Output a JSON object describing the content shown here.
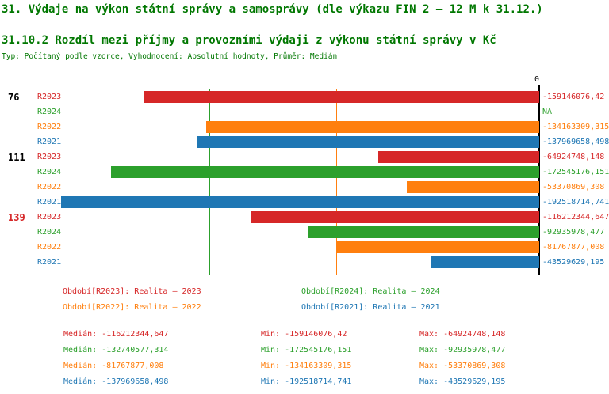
{
  "title": "31. Výdaje na výkon státní správy a samosprávy (dle výkazu FIN 2 – 12 M k 31.12.)",
  "subtitle": "31.10.2 Rozdíl mezi příjmy a provozními výdaji z výkonu státní správy v Kč",
  "type_line": "Typ: Počítaný podle vzorce, Vyhodnocení: Absolutní hodnoty, Průměr: Medián",
  "axis": {
    "zero_label": "0"
  },
  "colors": {
    "red": "#d62728",
    "green": "#2ca02c",
    "orange": "#ff7f0e",
    "blue": "#1f77b4",
    "heading": "#007700",
    "group_label": "#000000",
    "group_label_alert": "#d62728",
    "axis": "#000000"
  },
  "chart_data": {
    "type": "bar",
    "orientation": "horizontal",
    "unit": "Kč",
    "xlim": [
      -192518714.741,
      0
    ],
    "grid": "median-lines-per-series",
    "series_colors": {
      "R2023": "red",
      "R2024": "green",
      "R2022": "orange",
      "R2021": "blue"
    },
    "groups": [
      {
        "label": "76",
        "label_style": "normal",
        "rows": [
          {
            "series": "R2023",
            "value": -159146076.42,
            "display": "-159146076,42"
          },
          {
            "series": "R2024",
            "value": null,
            "display": "NA"
          },
          {
            "series": "R2022",
            "value": -134163309.315,
            "display": "-134163309,315"
          },
          {
            "series": "R2021",
            "value": -137969658.498,
            "display": "-137969658,498"
          }
        ]
      },
      {
        "label": "111",
        "label_style": "normal",
        "rows": [
          {
            "series": "R2023",
            "value": -64924748.148,
            "display": "-64924748,148"
          },
          {
            "series": "R2024",
            "value": -172545176.151,
            "display": "-172545176,151"
          },
          {
            "series": "R2022",
            "value": -53370869.308,
            "display": "-53370869,308"
          },
          {
            "series": "R2021",
            "value": -192518714.741,
            "display": "-192518714,741"
          }
        ]
      },
      {
        "label": "139",
        "label_style": "alert",
        "rows": [
          {
            "series": "R2023",
            "value": -116212344.647,
            "display": "-116212344,647"
          },
          {
            "series": "R2024",
            "value": -92935978.477,
            "display": "-92935978,477"
          },
          {
            "series": "R2022",
            "value": -81767877.008,
            "display": "-81767877,008"
          },
          {
            "series": "R2021",
            "value": -43529629.195,
            "display": "-43529629,195"
          }
        ]
      }
    ],
    "median_lines": {
      "R2023": -116212344.647,
      "R2024": -132740577.314,
      "R2022": -81767877.008,
      "R2021": -137969658.498
    }
  },
  "legend": [
    {
      "series": "R2023",
      "text": "Období[R2023]: Realita – 2023"
    },
    {
      "series": "R2024",
      "text": "Období[R2024]: Realita – 2024"
    },
    {
      "series": "R2022",
      "text": "Období[R2022]: Realita – 2022"
    },
    {
      "series": "R2021",
      "text": "Období[R2021]: Realita – 2021"
    }
  ],
  "stats": [
    {
      "series": "R2023",
      "median": "Medián: -116212344,647",
      "min": "Min: -159146076,42",
      "max": "Max: -64924748,148"
    },
    {
      "series": "R2024",
      "median": "Medián: -132740577,314",
      "min": "Min: -172545176,151",
      "max": "Max: -92935978,477"
    },
    {
      "series": "R2022",
      "median": "Medián: -81767877,008",
      "min": "Min: -134163309,315",
      "max": "Max: -53370869,308"
    },
    {
      "series": "R2021",
      "median": "Medián: -137969658,498",
      "min": "Min: -192518714,741",
      "max": "Max: -43529629,195"
    }
  ]
}
